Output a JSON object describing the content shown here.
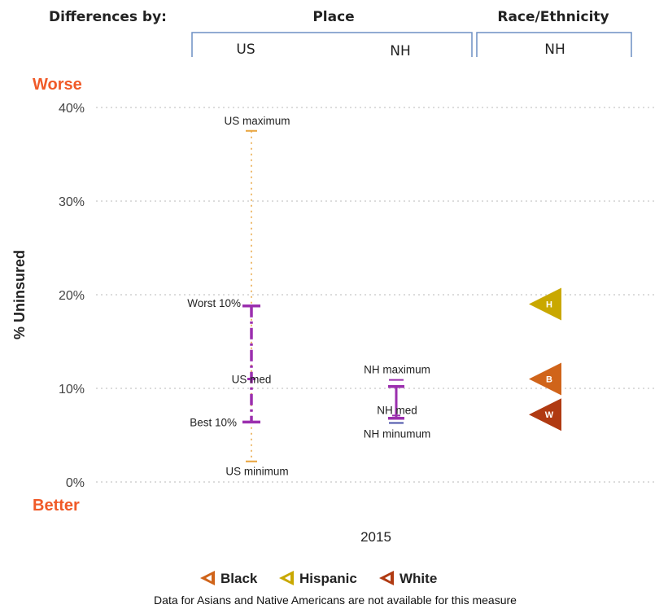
{
  "header": {
    "differences_by": "Differences by:",
    "place": "Place",
    "race_ethnicity": "Race/Ethnicity",
    "col_us": "US",
    "col_nh": "NH",
    "col_race_nh": "NH",
    "bracket_color": "#6d8fc4"
  },
  "labels": {
    "worse": "Worse",
    "better": "Better",
    "worse_better_color": "#f05a28",
    "us_maximum": "US maximum",
    "us_minimum": "US minimum",
    "worst_10": "Worst 10%",
    "best_10": "Best 10%",
    "us_med": "US med",
    "nh_maximum": "NH maximum",
    "nh_med": "NH med",
    "nh_minimum": "NH minumum"
  },
  "legend": {
    "items": [
      {
        "label": "Black",
        "color": "#d0641a"
      },
      {
        "label": "Hispanic",
        "color": "#c9a800"
      },
      {
        "label": "White",
        "color": "#b03a12"
      }
    ]
  },
  "note": "Data for Asians and Native Americans are not available for this measure",
  "chart_data": {
    "type": "scatter",
    "ylabel": "% Uninsured",
    "xlabel": "2015",
    "ylim": [
      0,
      40
    ],
    "yticks": [
      "0%",
      "10%",
      "20%",
      "30%",
      "40%"
    ],
    "grid": true,
    "us": {
      "maximum": 37.5,
      "worst_10": 18.8,
      "median": 11.0,
      "best_10": 6.4,
      "minimum": 2.2
    },
    "nh": {
      "maximum": 10.9,
      "upper": 10.2,
      "median": 7.1,
      "lower": 6.8,
      "minimum": 6.3
    },
    "race_nh": [
      {
        "name": "Hispanic",
        "letter": "H",
        "value": 19.0,
        "color": "#c9a800"
      },
      {
        "name": "Black",
        "letter": "B",
        "value": 11.0,
        "color": "#d0641a"
      },
      {
        "name": "White",
        "letter": "W",
        "value": 7.2,
        "color": "#b03a12"
      }
    ],
    "range_color": "#9b2fae",
    "min_max_color": "#e8a33c"
  }
}
